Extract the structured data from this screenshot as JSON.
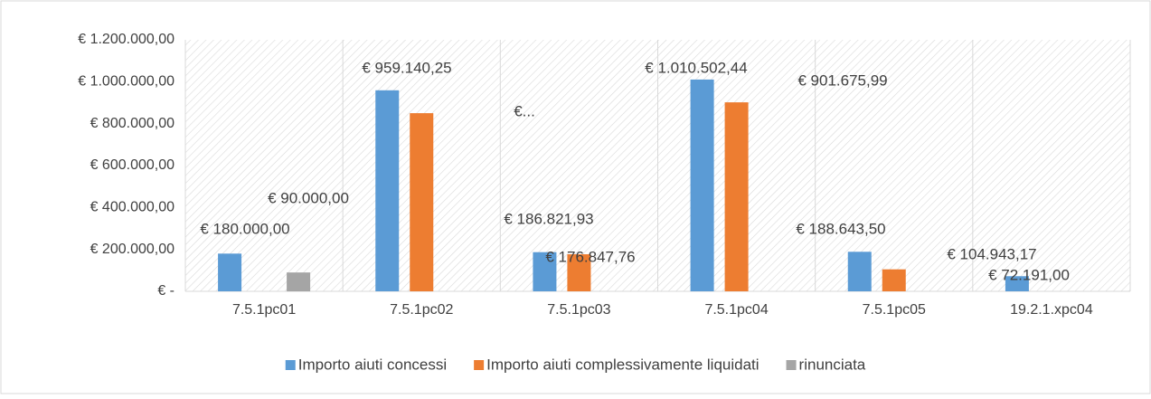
{
  "chart_data": {
    "type": "bar",
    "categories": [
      "7.5.1pc01",
      "7.5.1pc02",
      "7.5.1pc03",
      "7.5.1pc04",
      "7.5.1pc05",
      "19.2.1.xpc04"
    ],
    "series": [
      {
        "name": "Importo aiuti concessi",
        "color": "#5b9bd5",
        "values": [
          180000,
          959140.25,
          186821.93,
          1010502.44,
          188643.5,
          72191
        ],
        "value_labels": [
          "€ 180.000,00",
          "€ 959.140,25",
          "€ 186.821,93",
          "€ 1.010.502,44",
          "€ 188.643,50",
          "€ 72.191,00"
        ]
      },
      {
        "name": "Importo aiuti complessivamente liquidati",
        "color": "#ed7d31",
        "values": [
          null,
          850000,
          176847.76,
          901675.99,
          104943.17,
          null
        ],
        "value_labels": [
          null,
          "€...",
          "€ 176.847,76",
          "€ 901.675,99",
          "€ 104.943,17",
          null
        ]
      },
      {
        "name": "rinunciata",
        "color": "#a5a5a5",
        "values": [
          90000,
          null,
          null,
          null,
          null,
          null
        ],
        "value_labels": [
          "€ 90.000,00",
          null,
          null,
          null,
          null,
          null
        ]
      }
    ],
    "ylim": [
      0,
      1200000
    ],
    "yticks": [
      {
        "value": 0,
        "label": "€ -"
      },
      {
        "value": 200000,
        "label": "€ 200.000,00"
      },
      {
        "value": 400000,
        "label": "€ 400.000,00"
      },
      {
        "value": 600000,
        "label": "€ 600.000,00"
      },
      {
        "value": 800000,
        "label": "€ 800.000,00"
      },
      {
        "value": 1000000,
        "label": "€ 1.000.000,00"
      },
      {
        "value": 1200000,
        "label": "€ 1.200.000,00"
      }
    ],
    "grid": true,
    "legend": "bottom"
  }
}
